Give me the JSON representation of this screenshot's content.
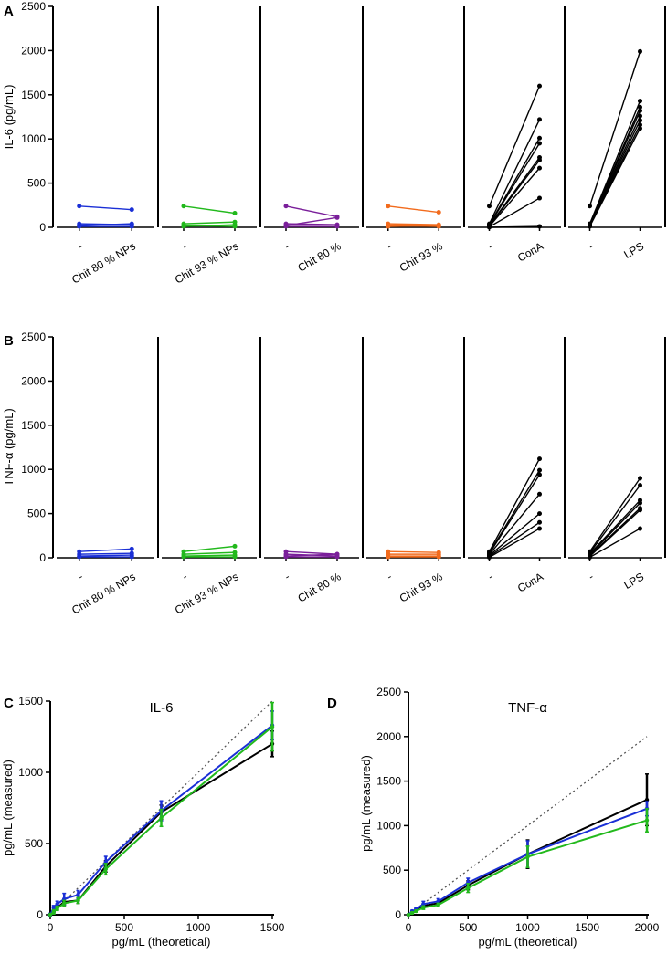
{
  "panel_labels": [
    "A",
    "B",
    "C",
    "D"
  ],
  "colors": {
    "blue": "#1a2fd6",
    "green": "#22b91c",
    "purple": "#7a1f9a",
    "orange": "#f26b1d",
    "black": "#000000",
    "dotted": "#555555"
  },
  "chart_data": [
    {
      "panel": "A",
      "type": "line",
      "ylabel": "IL-6 (pg/mL)",
      "ylim": [
        0,
        2500
      ],
      "yticks": [
        0,
        500,
        1000,
        1500,
        2000,
        2500
      ],
      "groups": [
        {
          "labels": [
            "-",
            "Chit 80 %  NPs"
          ],
          "color_key": "blue",
          "pairs": [
            [
              240,
              200
            ],
            [
              40,
              30
            ],
            [
              20,
              40
            ],
            [
              10,
              10
            ]
          ]
        },
        {
          "labels": [
            "-",
            "Chit 93 % NPs"
          ],
          "color_key": "green",
          "pairs": [
            [
              240,
              160
            ],
            [
              40,
              60
            ],
            [
              20,
              10
            ],
            [
              10,
              30
            ]
          ]
        },
        {
          "labels": [
            "-",
            "Chit 80 %"
          ],
          "color_key": "purple",
          "pairs": [
            [
              240,
              120
            ],
            [
              40,
              30
            ],
            [
              20,
              110
            ],
            [
              10,
              10
            ]
          ]
        },
        {
          "labels": [
            "-",
            "Chit 93 %"
          ],
          "color_key": "orange",
          "pairs": [
            [
              240,
              170
            ],
            [
              40,
              30
            ],
            [
              20,
              10
            ],
            [
              10,
              20
            ]
          ]
        },
        {
          "labels": [
            "-",
            "ConA"
          ],
          "color_key": "black",
          "pairs": [
            [
              240,
              1600
            ],
            [
              40,
              1220
            ],
            [
              30,
              1010
            ],
            [
              25,
              950
            ],
            [
              20,
              790
            ],
            [
              15,
              760
            ],
            [
              10,
              670
            ],
            [
              5,
              330
            ],
            [
              0,
              10
            ]
          ]
        },
        {
          "labels": [
            "-",
            "LPS"
          ],
          "color_key": "black",
          "pairs": [
            [
              240,
              1990
            ],
            [
              40,
              1430
            ],
            [
              35,
              1360
            ],
            [
              30,
              1320
            ],
            [
              25,
              1260
            ],
            [
              20,
              1210
            ],
            [
              15,
              1160
            ],
            [
              10,
              1120
            ]
          ]
        }
      ]
    },
    {
      "panel": "B",
      "type": "line",
      "ylabel": "TNF-α (pg/mL)",
      "ylim": [
        0,
        2500
      ],
      "yticks": [
        0,
        500,
        1000,
        1500,
        2000,
        2500
      ],
      "groups": [
        {
          "labels": [
            "-",
            "Chit 80 % NPs"
          ],
          "color_key": "blue",
          "pairs": [
            [
              70,
              100
            ],
            [
              40,
              50
            ],
            [
              20,
              30
            ],
            [
              10,
              10
            ]
          ]
        },
        {
          "labels": [
            "-",
            "Chit 93 % NPs"
          ],
          "color_key": "green",
          "pairs": [
            [
              70,
              130
            ],
            [
              40,
              60
            ],
            [
              20,
              30
            ],
            [
              10,
              10
            ]
          ]
        },
        {
          "labels": [
            "-",
            "Chit 80 %"
          ],
          "color_key": "purple",
          "pairs": [
            [
              70,
              40
            ],
            [
              40,
              20
            ],
            [
              20,
              40
            ],
            [
              10,
              10
            ]
          ]
        },
        {
          "labels": [
            "-",
            "Chit 93 %"
          ],
          "color_key": "orange",
          "pairs": [
            [
              70,
              60
            ],
            [
              40,
              40
            ],
            [
              20,
              20
            ],
            [
              10,
              10
            ]
          ]
        },
        {
          "labels": [
            "-",
            "ConA"
          ],
          "color_key": "black",
          "pairs": [
            [
              70,
              1120
            ],
            [
              55,
              990
            ],
            [
              45,
              940
            ],
            [
              35,
              720
            ],
            [
              25,
              500
            ],
            [
              15,
              400
            ],
            [
              5,
              330
            ]
          ]
        },
        {
          "labels": [
            "-",
            "LPS"
          ],
          "color_key": "black",
          "pairs": [
            [
              70,
              900
            ],
            [
              55,
              820
            ],
            [
              45,
              650
            ],
            [
              35,
              620
            ],
            [
              25,
              560
            ],
            [
              15,
              540
            ],
            [
              5,
              330
            ]
          ]
        }
      ]
    },
    {
      "panel": "C",
      "type": "line",
      "title": "IL-6",
      "xlabel": "pg/mL (theoretical)",
      "ylabel": "pg/mL (measured)",
      "xlim": [
        0,
        1500
      ],
      "ylim": [
        0,
        1500
      ],
      "xticks": [
        0,
        500,
        1000,
        1500
      ],
      "yticks": [
        0,
        500,
        1000,
        1500
      ],
      "identity_line": true,
      "x": [
        0,
        23,
        47,
        94,
        188,
        375,
        750,
        1500
      ],
      "series": [
        {
          "name": "black",
          "color_key": "black",
          "values": [
            0,
            25,
            50,
            90,
            100,
            340,
            720,
            1200
          ],
          "err": [
            5,
            10,
            15,
            20,
            20,
            40,
            50,
            90
          ]
        },
        {
          "name": "blue",
          "color_key": "blue",
          "values": [
            0,
            50,
            75,
            110,
            140,
            370,
            730,
            1330
          ],
          "err": [
            10,
            15,
            20,
            40,
            30,
            40,
            70,
            100
          ]
        },
        {
          "name": "green",
          "color_key": "green",
          "values": [
            0,
            20,
            45,
            80,
            100,
            320,
            680,
            1320
          ],
          "err": [
            5,
            15,
            15,
            20,
            20,
            40,
            60,
            170
          ]
        }
      ]
    },
    {
      "panel": "D",
      "type": "line",
      "title": "TNF-α",
      "xlabel": "pg/mL (theoretical)",
      "ylabel": "pg/mL (measured)",
      "xlim": [
        0,
        2000
      ],
      "ylim": [
        0,
        2500
      ],
      "xticks": [
        0,
        500,
        1000,
        1500,
        2000
      ],
      "yticks": [
        0,
        500,
        1000,
        1500,
        2000,
        2500
      ],
      "identity_line": true,
      "x": [
        0,
        31,
        63,
        125,
        250,
        500,
        1000,
        2000
      ],
      "series": [
        {
          "name": "black",
          "color_key": "black",
          "values": [
            0,
            25,
            50,
            100,
            130,
            330,
            680,
            1290
          ],
          "err": [
            5,
            10,
            10,
            20,
            20,
            50,
            160,
            290
          ]
        },
        {
          "name": "blue",
          "color_key": "blue",
          "values": [
            0,
            40,
            60,
            120,
            150,
            360,
            680,
            1190
          ],
          "err": [
            5,
            10,
            15,
            30,
            30,
            50,
            150,
            80
          ]
        },
        {
          "name": "green",
          "color_key": "green",
          "values": [
            0,
            20,
            40,
            80,
            110,
            300,
            650,
            1060
          ],
          "err": [
            5,
            10,
            10,
            20,
            20,
            50,
            120,
            130
          ]
        }
      ]
    }
  ]
}
